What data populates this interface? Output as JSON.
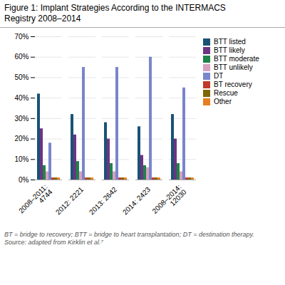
{
  "chart_data": {
    "type": "bar",
    "title": "Figure 1: Implant Strategies According to the INTERMACS\nRegistry 2008–2014",
    "caption": "BT = bridge to recovery; BTT = bridge to heart transplantation; DT = destination therapy.\nSource: adapted from Kirklin et al.⁷",
    "categories": [
      "2008–2011:\n4744",
      "2012: 2221",
      "2013: 2642",
      "2014: 2423",
      "2008–2014:\n12030"
    ],
    "series": [
      {
        "name": "BTT listed",
        "color": "#1a5276",
        "values": [
          42,
          32,
          28,
          26,
          32
        ]
      },
      {
        "name": "BTT likely",
        "color": "#6c3483",
        "values": [
          25,
          22,
          20,
          12,
          20
        ]
      },
      {
        "name": "BTT moderate",
        "color": "#1e8449",
        "values": [
          7,
          9,
          8,
          7,
          8
        ]
      },
      {
        "name": "BTT unlikely",
        "color": "#d7a0c0",
        "values": [
          4,
          4,
          4,
          6,
          4
        ]
      },
      {
        "name": "DT",
        "color": "#7986cb",
        "values": [
          18,
          55,
          55,
          60,
          45
        ]
      },
      {
        "name": "BT recovery",
        "color": "#c0392b",
        "values": [
          1,
          1,
          1,
          1,
          1
        ]
      },
      {
        "name": "Rescue",
        "color": "#7d6608",
        "values": [
          1,
          1,
          1,
          1,
          1
        ]
      },
      {
        "name": "Other",
        "color": "#e67e22",
        "values": [
          1,
          1,
          1,
          1,
          1
        ]
      }
    ],
    "ylim": [
      0,
      70
    ],
    "yticks": [
      {
        "value": 0,
        "label": "0%"
      },
      {
        "value": 10,
        "label": "10%"
      },
      {
        "value": 20,
        "label": "20%"
      },
      {
        "value": 30,
        "label": "30%"
      },
      {
        "value": 40,
        "label": "40%"
      },
      {
        "value": 50,
        "label": "50%"
      },
      {
        "value": 60,
        "label": "60%"
      },
      {
        "value": 70,
        "label": "70%"
      }
    ],
    "grid": true,
    "legend": "right"
  }
}
